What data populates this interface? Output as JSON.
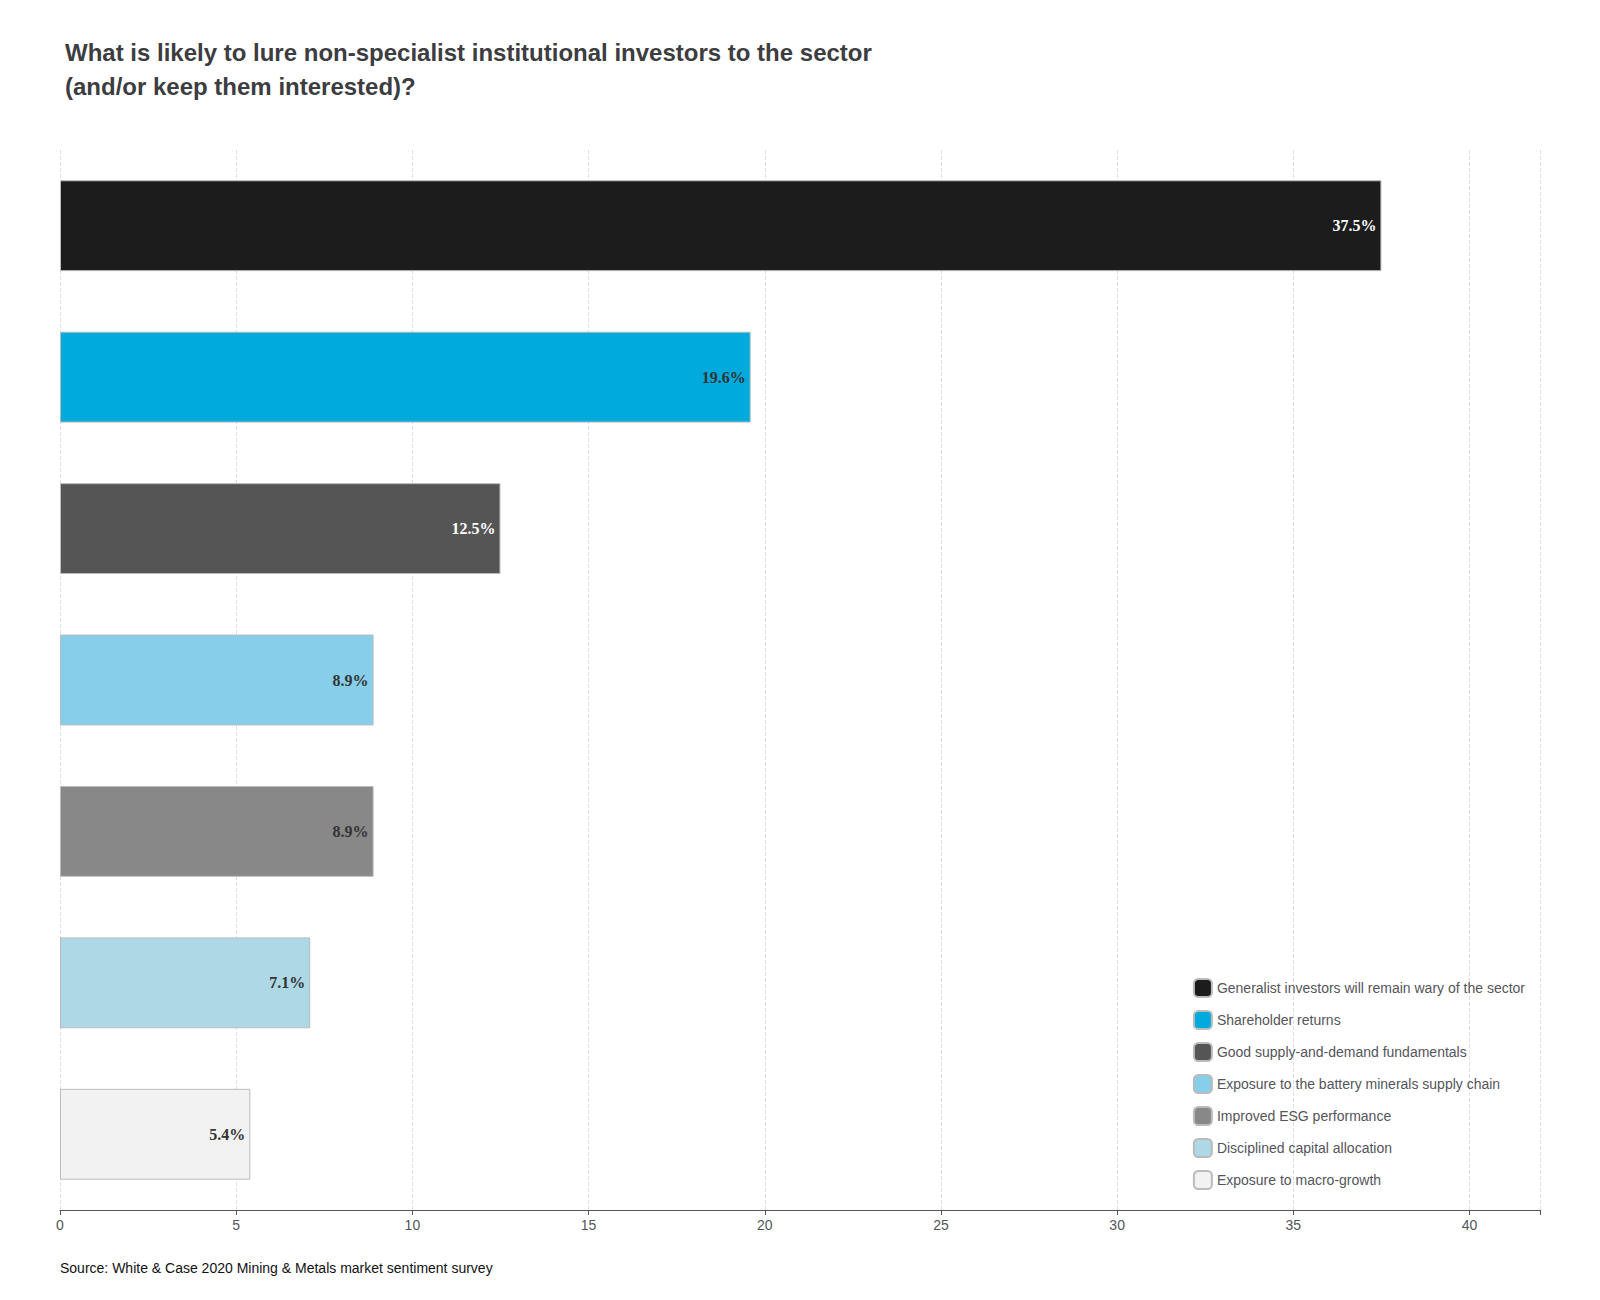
{
  "chart_data": {
    "type": "bar",
    "title": "What is likely to lure non-specialist institutional investors to the sector\n(and/or keep them interested)?",
    "orientation": "horizontal",
    "categories": [
      "Generalist investors will remain wary of the sector",
      "Shareholder returns",
      "Good supply-and-demand fundamentals",
      "Exposure to the battery minerals supply chain",
      "Improved ESG performance",
      "Disciplined capital allocation",
      "Exposure to macro-growth"
    ],
    "values": [
      37.5,
      19.6,
      12.5,
      8.9,
      8.9,
      7.1,
      5.4
    ],
    "value_labels": [
      "37.5%",
      "19.6%",
      "12.5%",
      "8.9%",
      "8.9%",
      "7.1%",
      "5.4%"
    ],
    "colors": [
      "#1c1c1c",
      "#00aadd",
      "#555555",
      "#87ceeb",
      "#888888",
      "#add8e6",
      "#f2f2f2"
    ],
    "xlim": [
      0,
      42
    ],
    "xticks": [
      0,
      5,
      10,
      15,
      20,
      25,
      30,
      35,
      40
    ],
    "grid": true,
    "legend": "lower right",
    "data_labels": true,
    "tick_labels": "x",
    "annotations": [
      "Source: White & Case 2020 Mining & Metals market sentiment survey"
    ]
  }
}
